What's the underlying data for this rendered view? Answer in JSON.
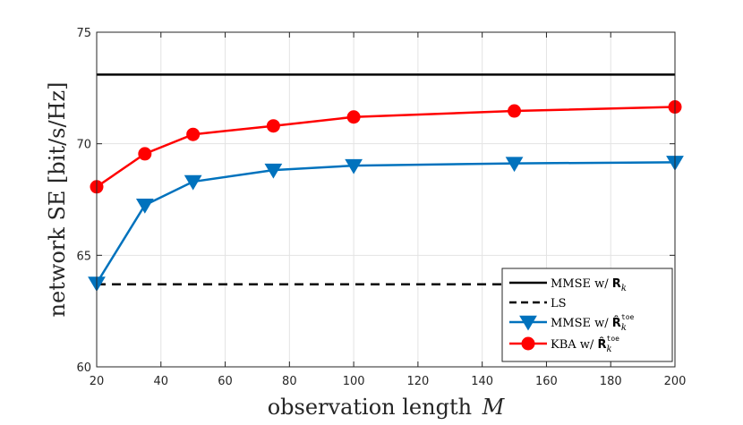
{
  "chart_data": {
    "type": "line",
    "title": "",
    "xlabel": "observation length",
    "xlabel_var": "M",
    "ylabel": "network SE [bit/s/Hz]",
    "xlim": [
      20,
      200
    ],
    "ylim": [
      60,
      75
    ],
    "xticks": [
      20,
      40,
      60,
      80,
      100,
      120,
      140,
      160,
      180,
      200
    ],
    "yticks": [
      60,
      65,
      70,
      75
    ],
    "grid": true,
    "legend_position": "bottom-right",
    "series": [
      {
        "name": "MMSE w/ R_k",
        "legend_main": "MMSE w/ ",
        "legend_sym": "R",
        "legend_sub": "k",
        "legend_sup": "",
        "color": "#000000",
        "style": "solid",
        "marker": "none",
        "x": [
          20,
          200
        ],
        "values": [
          73.1,
          73.1
        ]
      },
      {
        "name": "LS",
        "legend_main": "LS",
        "legend_sym": "",
        "legend_sub": "",
        "legend_sup": "",
        "color": "#000000",
        "style": "dashed",
        "marker": "none",
        "x": [
          20,
          200
        ],
        "values": [
          63.7,
          63.7
        ]
      },
      {
        "name": "MMSE w/ R̂_k^toe",
        "legend_main": "MMSE w/ ",
        "legend_sym": "R̂",
        "legend_sub": "k",
        "legend_sup": "toe",
        "color": "#0072BD",
        "style": "solid",
        "marker": "triangle-down",
        "x": [
          20,
          35,
          50,
          75,
          100,
          150,
          200
        ],
        "values": [
          63.75,
          67.25,
          68.3,
          68.82,
          69.02,
          69.12,
          69.17
        ]
      },
      {
        "name": "KBA w/ R̂_k^toe",
        "legend_main": "KBA w/ ",
        "legend_sym": "R̂",
        "legend_sub": "k",
        "legend_sup": "toe",
        "color": "#FF0000",
        "style": "solid",
        "marker": "circle",
        "x": [
          20,
          35,
          50,
          75,
          100,
          150,
          200
        ],
        "values": [
          68.07,
          69.55,
          70.42,
          70.8,
          71.2,
          71.47,
          71.65
        ]
      }
    ]
  }
}
